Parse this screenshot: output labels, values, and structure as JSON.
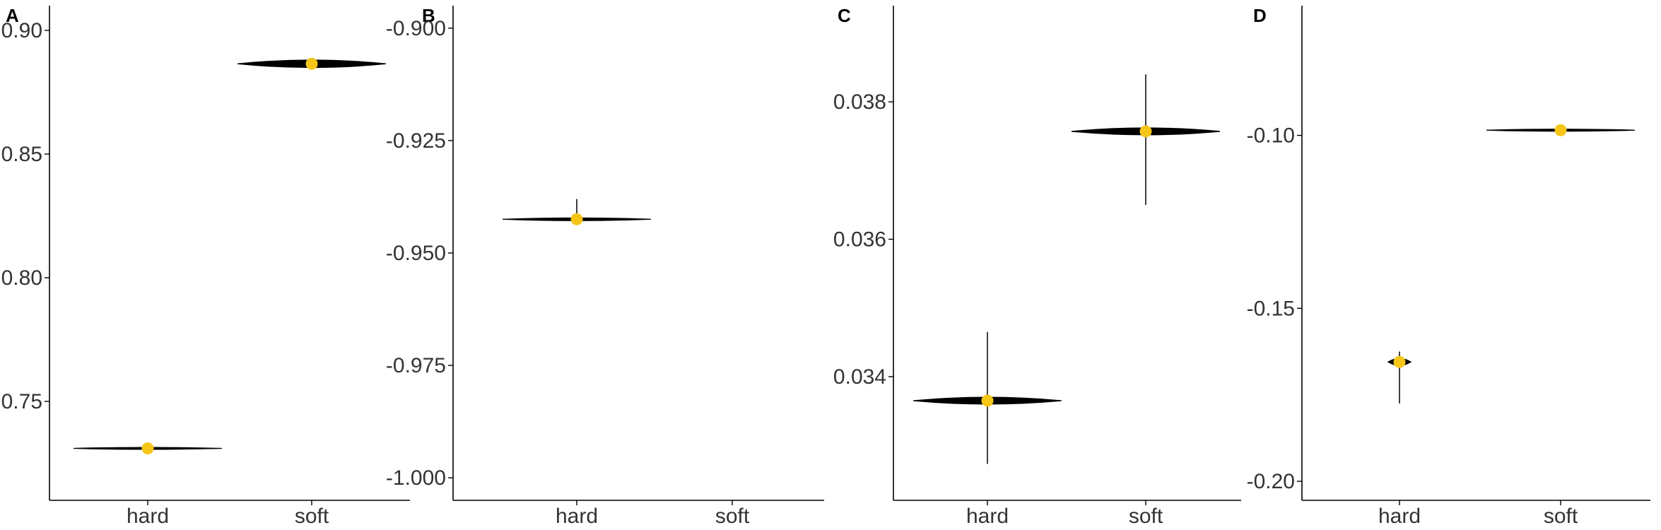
{
  "chart_data": [
    {
      "type": "violin",
      "panel_label": "A",
      "categories": [
        "hard",
        "soft"
      ],
      "ylim": [
        0.71,
        0.91
      ],
      "yticks": [
        0.75,
        0.8,
        0.85,
        0.9
      ],
      "ytick_labels": [
        "0.75",
        "0.80",
        "0.85",
        "0.90"
      ],
      "points": [
        {
          "category": "hard",
          "mean": 0.731,
          "lo": 0.731,
          "hi": 0.731,
          "violin_lo": 0.7306,
          "violin_hi": 0.7314
        },
        {
          "category": "soft",
          "mean": 0.8865,
          "lo": 0.8865,
          "hi": 0.8865,
          "violin_lo": 0.885,
          "violin_hi": 0.888
        }
      ],
      "grid": false
    },
    {
      "type": "violin",
      "panel_label": "B",
      "categories": [
        "hard",
        "soft"
      ],
      "ylim": [
        -1.005,
        -0.895
      ],
      "yticks": [
        -1.0,
        -0.975,
        -0.95,
        -0.925,
        -0.9
      ],
      "ytick_labels": [
        "-1.000",
        "-0.975",
        "-0.950",
        "-0.925",
        "-0.900"
      ],
      "points": [
        {
          "category": "hard",
          "mean": -0.9425,
          "lo": -0.9425,
          "hi": -0.938,
          "violin_lo": -0.9428,
          "violin_hi": -0.9422
        }
      ],
      "grid": false
    },
    {
      "type": "violin",
      "panel_label": "C",
      "categories": [
        "hard",
        "soft"
      ],
      "ylim": [
        0.0322,
        0.0394
      ],
      "yticks": [
        0.034,
        0.036,
        0.038
      ],
      "ytick_labels": [
        "0.034",
        "0.036",
        "0.038"
      ],
      "points": [
        {
          "category": "hard",
          "mean": 0.03365,
          "lo": 0.03273,
          "hi": 0.03465,
          "violin_lo": 0.0336,
          "violin_hi": 0.0337
        },
        {
          "category": "soft",
          "mean": 0.03757,
          "lo": 0.0365,
          "hi": 0.0384,
          "violin_lo": 0.0375,
          "violin_hi": 0.0376
        }
      ],
      "grid": false
    },
    {
      "type": "violin",
      "panel_label": "D",
      "categories": [
        "hard",
        "soft"
      ],
      "ylim": [
        -0.2055,
        -0.0625
      ],
      "yticks": [
        -0.2,
        -0.15,
        -0.1
      ],
      "ytick_labels": [
        "-0.20",
        "-0.15",
        "-0.10"
      ],
      "points": [
        {
          "category": "hard",
          "mean": -0.1655,
          "lo": -0.1775,
          "hi": -0.1625,
          "violin_lo": -0.1665,
          "violin_hi": -0.1645
        },
        {
          "category": "soft",
          "mean": -0.0985,
          "lo": -0.0985,
          "hi": -0.0985,
          "violin_lo": -0.0988,
          "violin_hi": -0.0982
        }
      ],
      "grid": false
    }
  ],
  "colors": {
    "point": "#F5C518",
    "violin": "#000000",
    "axis": "#000000",
    "text": "#333333",
    "violin_accent": "#1f3a93"
  }
}
